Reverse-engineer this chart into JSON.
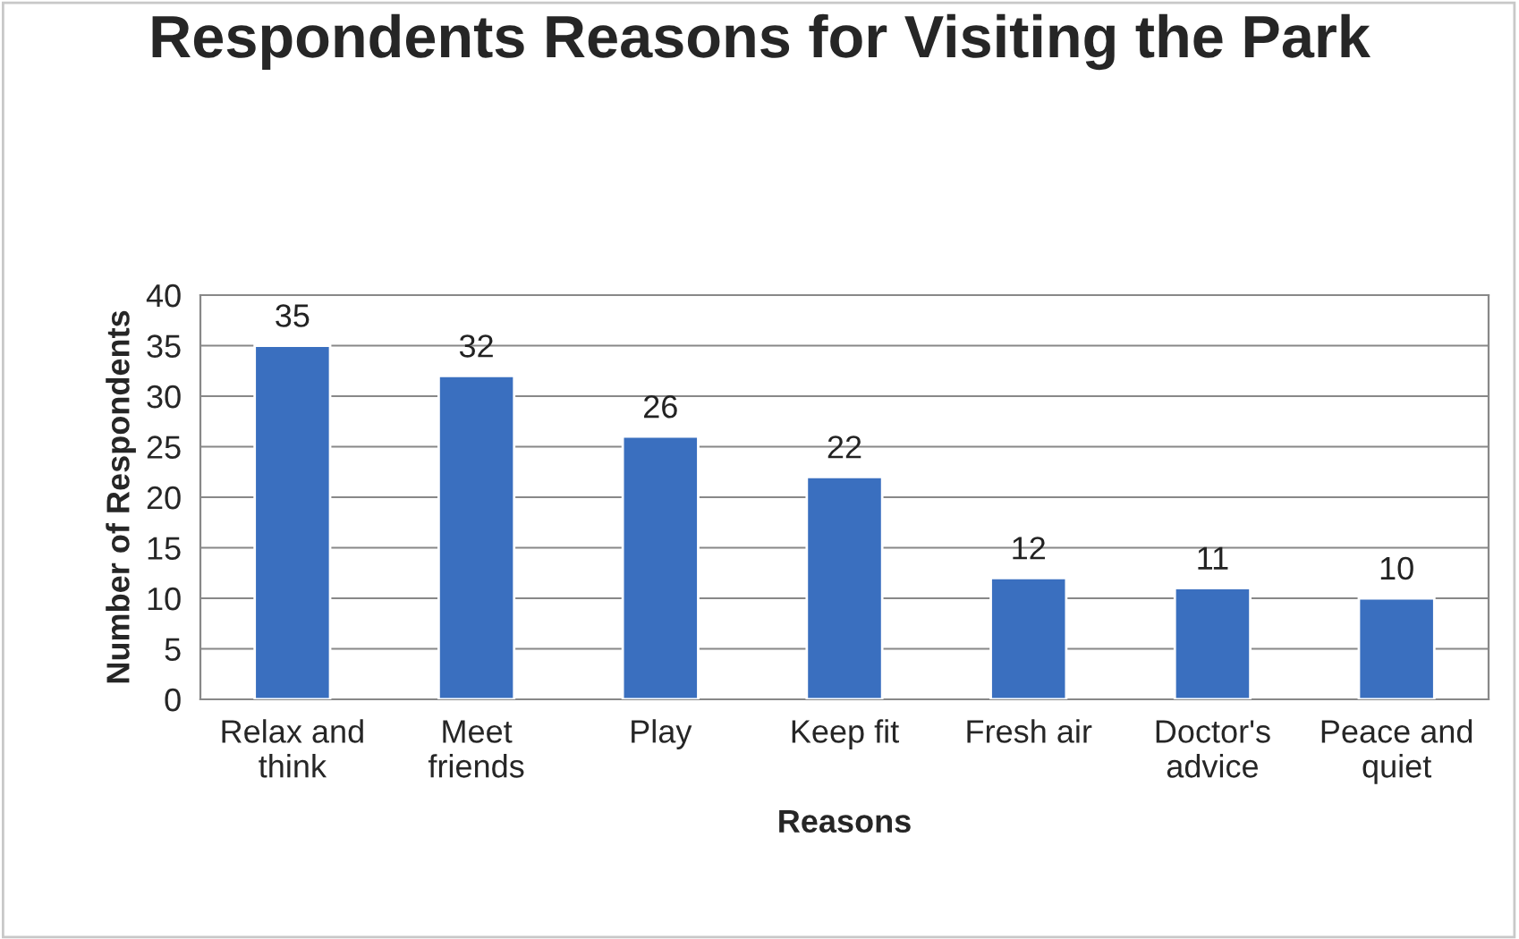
{
  "chart_data": {
    "type": "bar",
    "title": "Respondents Reasons for Visiting the Park",
    "xlabel": "Reasons",
    "ylabel": "Number of Respondents",
    "categories": [
      "Relax and\nthink",
      "Meet\nfriends",
      "Play",
      "Keep fit",
      "Fresh air",
      "Doctor's\nadvice",
      "Peace and\nquiet"
    ],
    "values": [
      35,
      32,
      26,
      22,
      12,
      11,
      10
    ],
    "color": "#3a6fbf",
    "ylim": [
      0,
      40
    ],
    "yticks": [
      0,
      5,
      10,
      15,
      20,
      25,
      30,
      35,
      40
    ],
    "grid": "y",
    "data_labels": true
  }
}
